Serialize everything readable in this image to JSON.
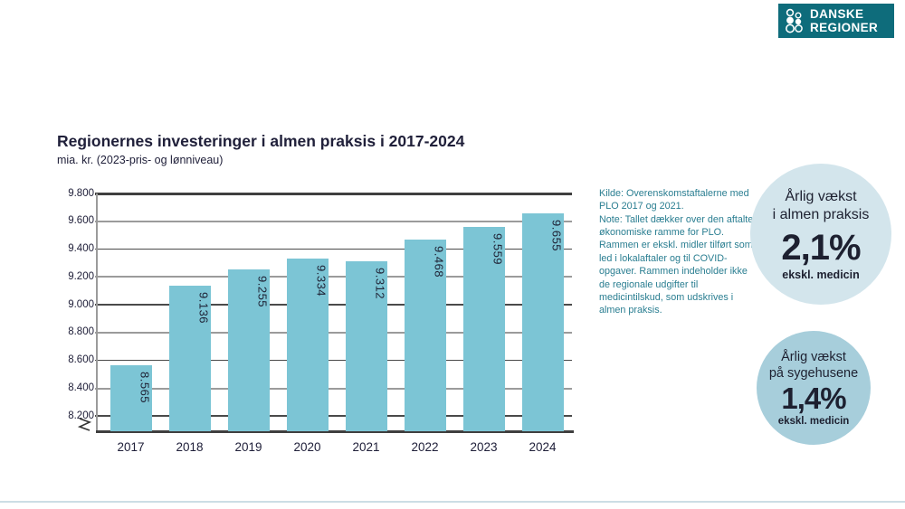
{
  "logo": {
    "line1": "DANSKE",
    "line2": "REGIONER",
    "background": "#0e6c7b"
  },
  "chart_data": {
    "type": "bar",
    "title": "Regionernes investeringer i almen praksis i 2017-2024",
    "subtitle": "mia. kr. (2023-pris- og lønniveau)",
    "categories": [
      "2017",
      "2018",
      "2019",
      "2020",
      "2021",
      "2022",
      "2023",
      "2024"
    ],
    "values": [
      8565,
      9136,
      9255,
      9334,
      9312,
      9468,
      9559,
      9655
    ],
    "value_labels": [
      "8.565",
      "9.136",
      "9.255",
      "9.334",
      "9.312",
      "9.468",
      "9.559",
      "9.655"
    ],
    "ylim": [
      8085,
      9800
    ],
    "yticks": [
      9800,
      9600,
      9400,
      9200,
      9000,
      8800,
      8600,
      8400,
      8200
    ],
    "ytick_labels": [
      "9.800",
      "9.600",
      "9.400",
      "9.200",
      "9.000",
      "8.800",
      "8.600",
      "8.400",
      "8.200"
    ],
    "axis_break": true,
    "grid": true,
    "legend": false,
    "bar_color": "#7cc5d5"
  },
  "note": {
    "kilde": "Kilde: Overenskomstaftalerne med PLO 2017 og 2021.",
    "note": "Note: Tallet dækker over den aftalte økonomiske ramme for PLO. Rammen er ekskl. midler tilført som led i lokalaftaler og til COVID-opgaver. Rammen indeholder ikke de regionale udgifter til medicintilskud, som udskrives i almen praksis."
  },
  "badges": [
    {
      "line1": "Årlig vækst",
      "line2": "i almen praksis",
      "value": "2,1%",
      "note": "ekskl. medicin",
      "background": "#d3e5ec"
    },
    {
      "line1": "Årlig vækst",
      "line2": "på sygehusene",
      "value": "1,4%",
      "note": "ekskl. medicin",
      "background": "#a7cedb"
    }
  ],
  "colors": {
    "brand_teal": "#0e6c7b",
    "bar_teal": "#7cc5d5",
    "badge_light_blue": "#d3e5ec",
    "badge_teal": "#a7cedb",
    "note_text": "#2a7e91",
    "text_dark": "#20203a",
    "bottom_rule": "#ccdee5"
  }
}
